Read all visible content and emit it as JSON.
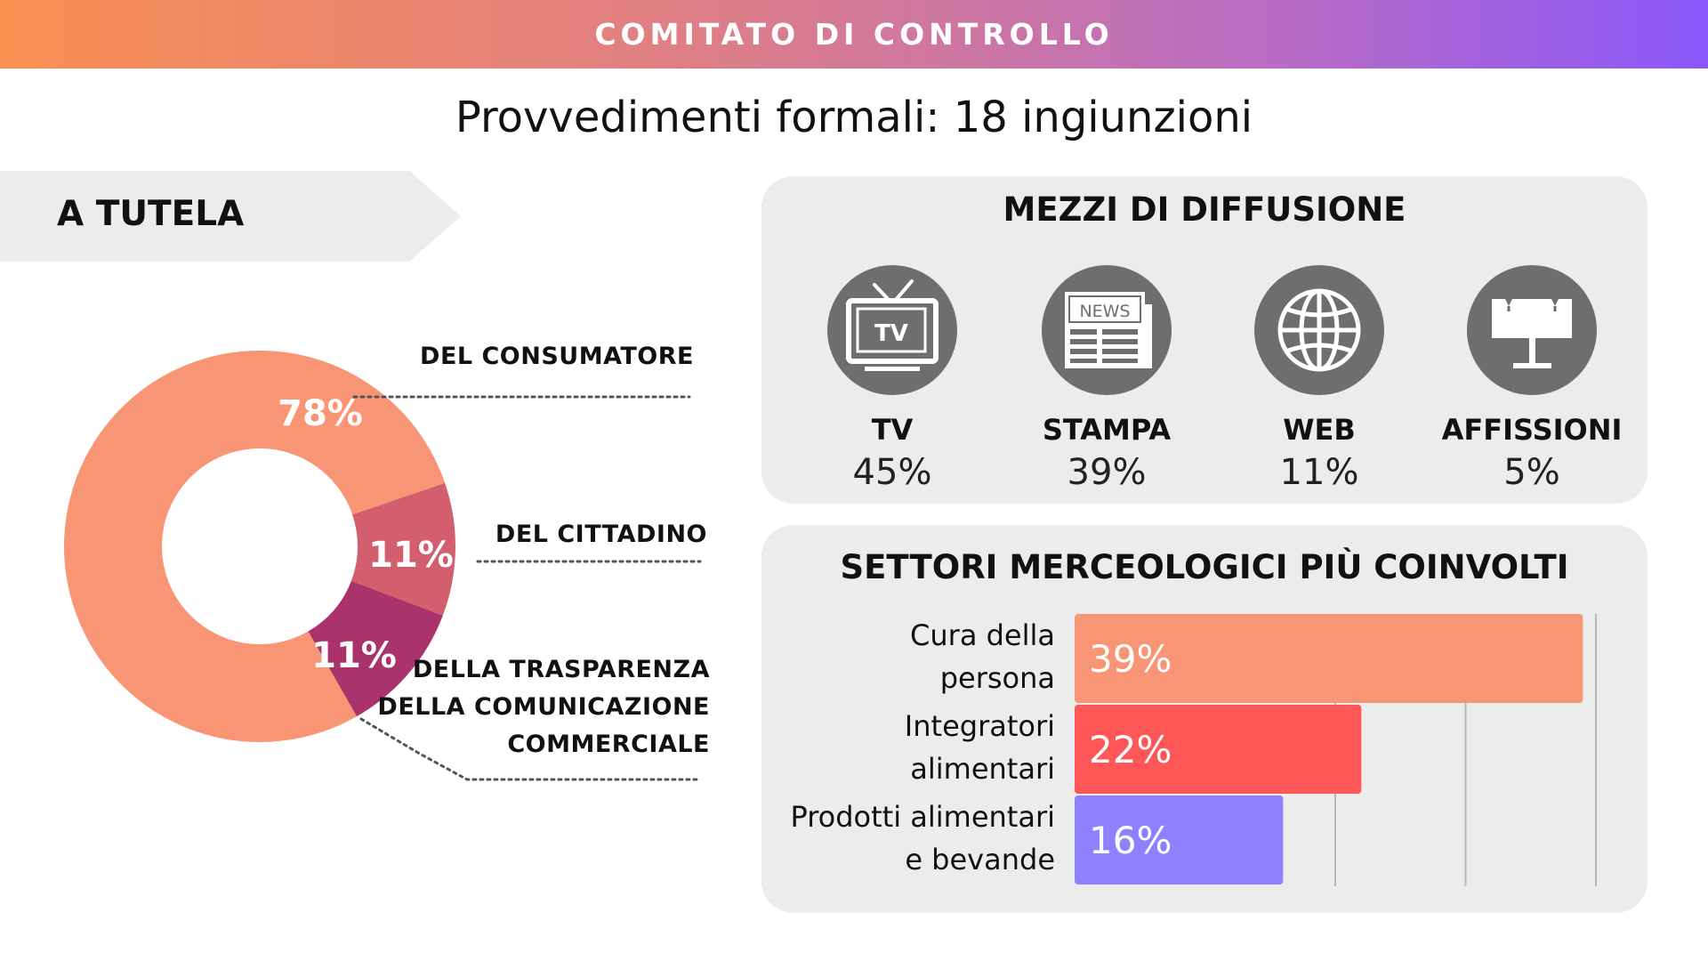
{
  "header": {
    "title": "COMITATO DI CONTROLLO"
  },
  "subtitle": "Provvedimenti formali: 18 ingiunzioni",
  "tutela": {
    "label": "A TUTELA"
  },
  "colors": {
    "consumatore": "#f89575",
    "cittadino": "#d35f6e",
    "trasparenza": "#a9336a",
    "bar_cura": "#f89575",
    "bar_integratori": "#ff5757",
    "bar_prodotti": "#8f80fe",
    "panel": "#ececec",
    "icon_circle": "#6e6e6e"
  },
  "media": {
    "title": "MEZZI DI DIFFUSIONE",
    "items": [
      {
        "label": "TV",
        "value": "45%",
        "icon": "tv-icon",
        "badge": "TV"
      },
      {
        "label": "STAMPA",
        "value": "39%",
        "icon": "newspaper-icon",
        "badge": "NEWS"
      },
      {
        "label": "WEB",
        "value": "11%",
        "icon": "globe-icon"
      },
      {
        "label": "AFFISSIONI",
        "value": "5%",
        "icon": "billboard-icon"
      }
    ]
  },
  "sectors": {
    "title": "SETTORI MERCEOLOGICI PIÙ COINVOLTI"
  },
  "chart_data": [
    {
      "type": "pie",
      "variant": "donut",
      "labels": [
        "DEL CONSUMATORE",
        "DEL CITTADINO",
        "DELLA TRASPARENZA DELLA COMUNICAZIONE COMMERCIALE"
      ],
      "values": [
        78,
        11,
        11
      ],
      "value_labels": [
        "78%",
        "11%",
        "11%"
      ],
      "colors": [
        "#f89575",
        "#d35f6e",
        "#a9336a"
      ]
    },
    {
      "type": "bar",
      "orientation": "horizontal",
      "categories": [
        "Cura della persona",
        "Integratori alimentari",
        "Prodotti alimentari e bevande"
      ],
      "category_lines": [
        [
          "Cura della",
          "persona"
        ],
        [
          "Integratori",
          "alimentari"
        ],
        [
          "Prodotti alimentari",
          "e bevande"
        ]
      ],
      "values": [
        39,
        22,
        16
      ],
      "value_labels": [
        "39%",
        "22%",
        "16%"
      ],
      "colors": [
        "#f89575",
        "#ff5757",
        "#8f80fe"
      ],
      "xlim": [
        0,
        50
      ],
      "grid": true
    }
  ]
}
